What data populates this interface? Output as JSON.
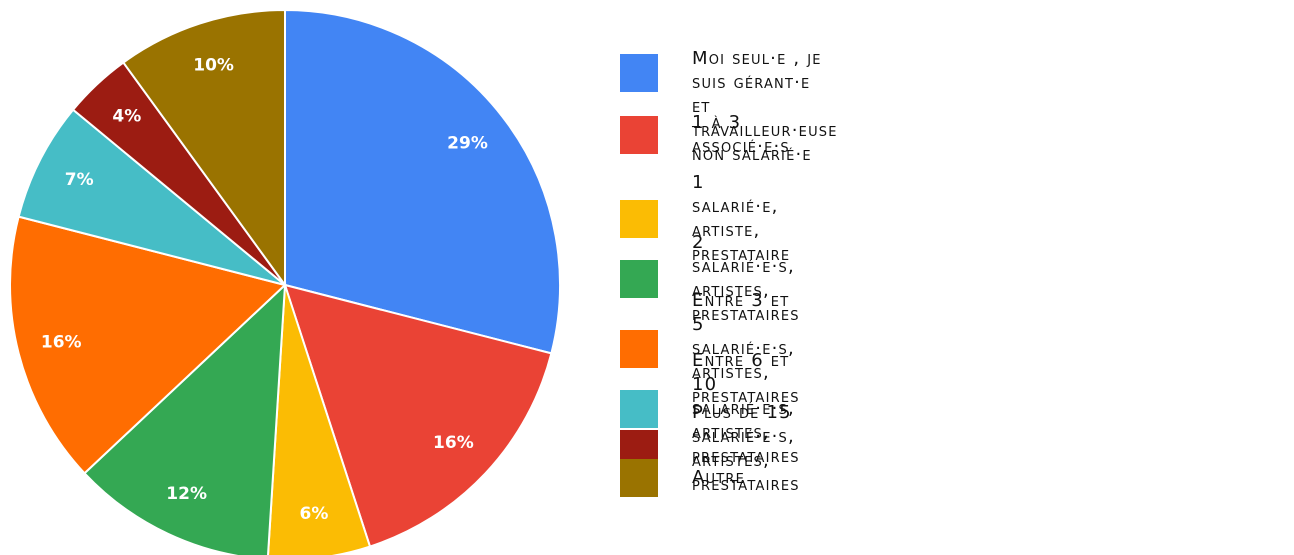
{
  "chart_data": {
    "type": "pie",
    "categories": [
      "Moi seul·e , je suis gérant·e\net travailleur·euse non salarié·e",
      "1 à 3 associé·e·s",
      "1 salarié·e, artiste, prestataire",
      "2 salarié·e·s, artistes, prestataires",
      "Entre 3 et 5 salarié·e·s, artistes, prestataires",
      "Entre 6 et 10 salarié·e·s, artistes, prestataires",
      "Plus de 15 salarié·e·s, artistes, prestataires",
      "Autre"
    ],
    "values": [
      29,
      16,
      6,
      12,
      16,
      7,
      4,
      10
    ],
    "value_labels": [
      "29%",
      "16%",
      "6%",
      "12%",
      "16%",
      "7%",
      "4%",
      "10%"
    ],
    "colors": [
      "#4285f4",
      "#ea4335",
      "#fbbc04",
      "#34a853",
      "#ff6d01",
      "#46bdc6",
      "#9c1c12",
      "#9a7300"
    ],
    "legend": "right"
  }
}
